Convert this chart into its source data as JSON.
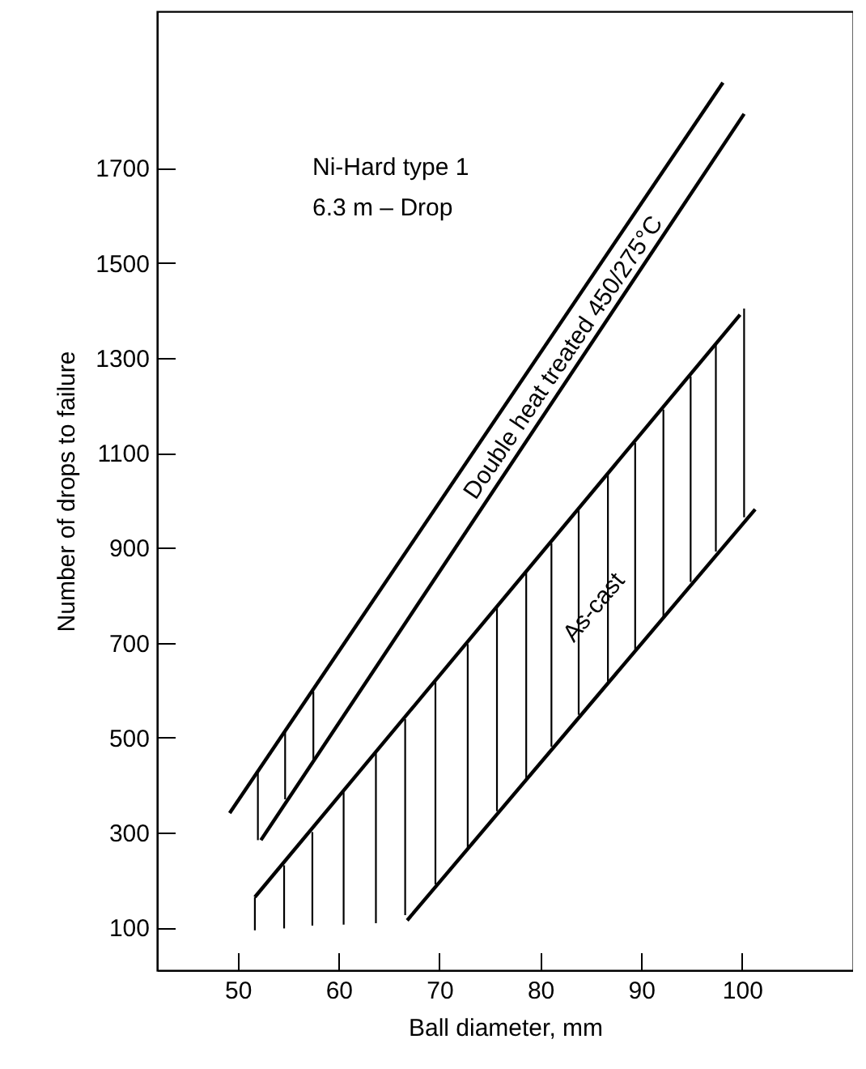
{
  "chart_data": {
    "type": "line",
    "xlabel": "Ball diameter, mm",
    "ylabel": "Number of drops to failure",
    "annotations": [
      "Ni-Hard type 1",
      "6.3 m – Drop"
    ],
    "xlim": [
      42,
      111
    ],
    "xticks": [
      50,
      60,
      70,
      80,
      90,
      100
    ],
    "ylim": [
      10,
      2030
    ],
    "yticks": [
      100,
      300,
      500,
      700,
      900,
      1100,
      1300,
      1500,
      1700
    ],
    "series": [
      {
        "name": "Double heat treated 450/275°C",
        "color": "#000000",
        "x": [
          49.2,
          98.1
        ],
        "values": [
          341,
          1880
        ]
      },
      {
        "color": "#000000",
        "x": [
          52.3,
          100.2
        ],
        "values": [
          284,
          1814
        ]
      },
      {
        "name": "As-cast",
        "color": "#000000",
        "x": [
          51.7,
          99.8
        ],
        "values": [
          164,
          1391
        ]
      },
      {
        "color": "#000000",
        "x": [
          66.8,
          101.3
        ],
        "values": [
          115,
          981
        ]
      },
      {
        "type": "bar",
        "color": "#000000",
        "x": [
          51.7,
          52.0,
          54.6,
          54.7,
          57.4,
          57.5,
          60.5,
          63.7,
          66.6,
          69.6,
          72.8,
          75.7,
          78.6,
          81.1,
          83.8,
          86.7,
          89.4,
          92.2,
          94.9,
          97.4,
          100.2
        ],
        "base": [
          94,
          284,
          98,
          370,
          104,
          452,
          106,
          109,
          126,
          191,
          269,
          345,
          414,
          481,
          548,
          618,
          686,
          754,
          828,
          892,
          964
        ],
        "values": [
          70,
          142,
          133,
          143,
          197,
          145,
          279,
          358,
          413,
          427,
          428,
          430,
          434,
          428,
          431,
          436,
          435,
          437,
          433,
          436,
          440
        ]
      }
    ]
  }
}
